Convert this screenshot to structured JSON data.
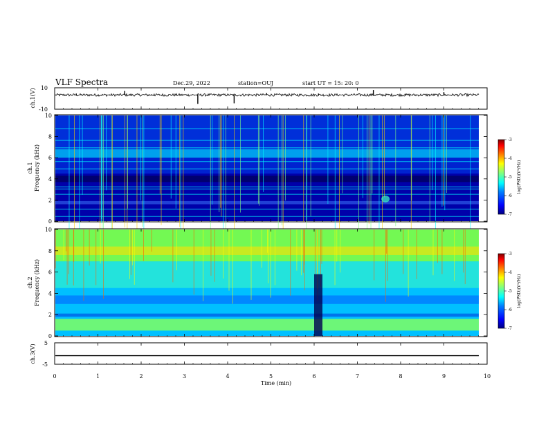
{
  "header": {
    "title": "VLF Spectra",
    "date": "Dec.29, 2022",
    "station": "station=OUJ",
    "start": "start UT =  15: 20: 0"
  },
  "chart_data": [
    {
      "type": "line",
      "panel": "ch1-waveform",
      "ylabel": "ch.1(V)",
      "yticks": [
        "10",
        "-10"
      ],
      "ylim": [
        -10,
        10
      ],
      "baseline": 3.3,
      "spikes": [
        [
          1.62,
          7.0
        ],
        [
          3.31,
          -5.0
        ],
        [
          4.15,
          -4.5
        ],
        [
          7.37,
          8.0
        ],
        [
          9.0,
          6.0
        ],
        [
          4.9,
          5.0
        ],
        [
          0.5,
          4.6
        ],
        [
          2.3,
          4.4
        ],
        [
          6.1,
          4.6
        ],
        [
          8.1,
          4.3
        ]
      ]
    },
    {
      "type": "heatmap",
      "panel": "ch1-spectrogram",
      "ylabel": "ch.1\nFrequency (kHz)",
      "xlim": [
        0,
        10
      ],
      "ylim": [
        0,
        10
      ],
      "yticks": [
        "10",
        "8",
        "6",
        "4",
        "2",
        "0"
      ],
      "colorbar": {
        "label": "log(PSD)(V²/Hz)",
        "ticks": [
          "-3",
          "-4",
          "-5",
          "-6",
          "-7"
        ],
        "range": [
          -7,
          -3
        ]
      }
    },
    {
      "type": "heatmap",
      "panel": "ch2-spectrogram",
      "ylabel": "ch.2\nFrequency (kHz)",
      "xlim": [
        0,
        10
      ],
      "ylim": [
        0,
        10
      ],
      "yticks": [
        "10",
        "8",
        "6",
        "4",
        "2",
        "0"
      ],
      "colorbar": {
        "label": "log(PSD)(V²/Hz)",
        "ticks": [
          "-3",
          "-4",
          "-5",
          "-6",
          "-7"
        ],
        "range": [
          -7,
          -3
        ]
      }
    },
    {
      "type": "line",
      "panel": "ch3-waveform",
      "ylabel": "ch.3(V)",
      "yticks": [
        "5",
        "-5"
      ],
      "ylim": [
        -5,
        5
      ],
      "baseline": -1.0,
      "xlabel": "Time (min)",
      "xlim": [
        0,
        10
      ],
      "xticks": [
        "0",
        "1",
        "2",
        "3",
        "4",
        "5",
        "6",
        "7",
        "8",
        "9",
        "10"
      ]
    }
  ],
  "colors": {
    "axis": "#000000",
    "colormap": [
      "#00007f",
      "#0000ff",
      "#0080ff",
      "#00ffff",
      "#80ff80",
      "#ffff00",
      "#ff8000",
      "#ff0000",
      "#7f0000"
    ]
  }
}
